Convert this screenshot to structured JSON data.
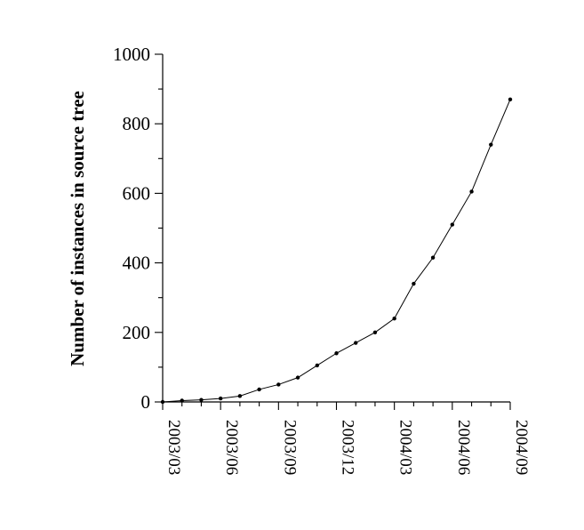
{
  "chart_data": {
    "type": "line",
    "title": "",
    "xlabel": "",
    "ylabel": "Number of instances in source tree",
    "ylim": [
      0,
      1000
    ],
    "y_ticks": [
      0,
      200,
      400,
      600,
      800,
      1000
    ],
    "x_range": [
      "2003/03",
      "2004/09"
    ],
    "x_ticks": [
      "2003/03",
      "2003/06",
      "2003/09",
      "2003/12",
      "2004/03",
      "2004/06",
      "2004/09"
    ],
    "grid": false,
    "series": [
      {
        "x": [
          "2003/03",
          "2003/04",
          "2003/05",
          "2003/06",
          "2003/07",
          "2003/08",
          "2003/09",
          "2003/10",
          "2003/11",
          "2003/12",
          "2004/01",
          "2004/02",
          "2004/03",
          "2004/04",
          "2004/05",
          "2004/06",
          "2004/07",
          "2004/08",
          "2004/09"
        ],
        "values": [
          0,
          4,
          6,
          10,
          17,
          36,
          50,
          70,
          105,
          140,
          170,
          200,
          240,
          340,
          415,
          510,
          605,
          740,
          870
        ]
      }
    ]
  }
}
